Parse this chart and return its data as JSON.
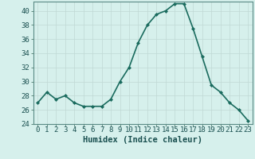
{
  "x": [
    0,
    1,
    2,
    3,
    4,
    5,
    6,
    7,
    8,
    9,
    10,
    11,
    12,
    13,
    14,
    15,
    16,
    17,
    18,
    19,
    20,
    21,
    22,
    23
  ],
  "y": [
    27,
    28.5,
    27.5,
    28,
    27,
    26.5,
    26.5,
    26.5,
    27.5,
    30,
    32,
    35.5,
    38,
    39.5,
    40,
    41,
    41,
    37.5,
    33.5,
    29.5,
    28.5,
    27,
    26,
    24.5
  ],
  "xlabel": "Humidex (Indice chaleur)",
  "ylim": [
    24,
    41
  ],
  "xlim": [
    -0.5,
    23.5
  ],
  "yticks": [
    24,
    26,
    28,
    30,
    32,
    34,
    36,
    38,
    40
  ],
  "xticks": [
    0,
    1,
    2,
    3,
    4,
    5,
    6,
    7,
    8,
    9,
    10,
    11,
    12,
    13,
    14,
    15,
    16,
    17,
    18,
    19,
    20,
    21,
    22,
    23
  ],
  "line_color": "#1a6b5e",
  "marker": "D",
  "marker_size": 2.0,
  "bg_color": "#d6f0ec",
  "grid_color": "#c0d8d4",
  "xlabel_fontsize": 7.5,
  "tick_fontsize": 6.5,
  "linewidth": 1.2
}
